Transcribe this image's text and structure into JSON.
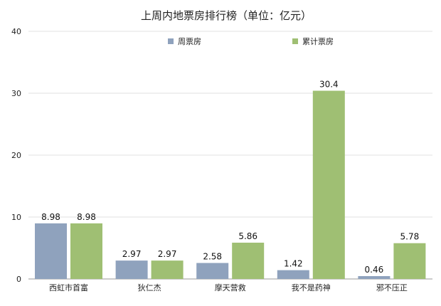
{
  "chart_data": {
    "type": "bar",
    "title": "上周内地票房排行榜（单位：亿元）",
    "xlabel": "",
    "ylabel": "",
    "ylim": [
      0,
      40
    ],
    "yticks": [
      0,
      10,
      20,
      30,
      40
    ],
    "grid": true,
    "legend_position": "top",
    "categories": [
      "西虹市首富",
      "狄仁杰",
      "摩天营救",
      "我不是药神",
      "邪不压正"
    ],
    "series": [
      {
        "name": "周票房",
        "color": "#8fa2bd",
        "values": [
          8.98,
          2.97,
          2.58,
          1.42,
          0.46
        ]
      },
      {
        "name": "累计票房",
        "color": "#9fbf73",
        "values": [
          8.98,
          2.97,
          5.86,
          30.4,
          5.78
        ]
      }
    ]
  }
}
